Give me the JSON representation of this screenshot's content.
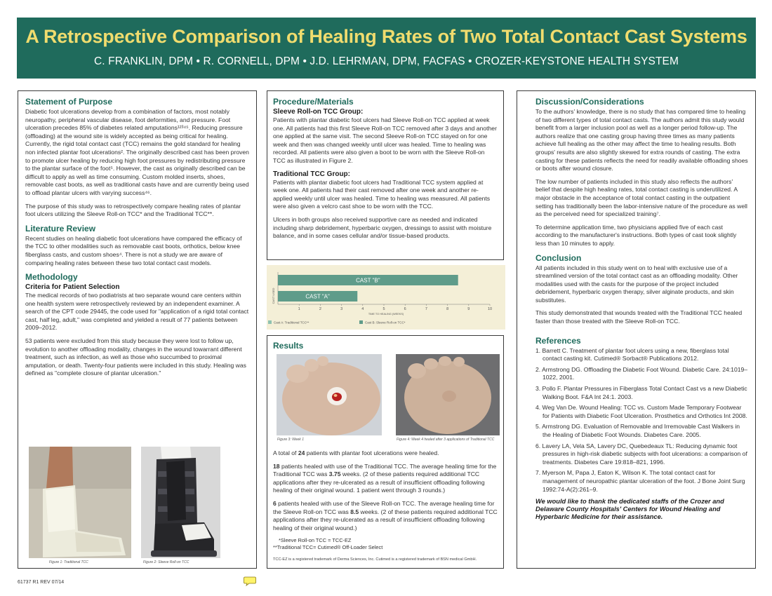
{
  "header": {
    "title": "A Retrospective Comparison of Healing Rates of Two Total Contact Cast Systems",
    "authors": "C. FRANKLIN, DPM  •  R. CORNELL, DPM  •  J.D. LEHRMAN, DPM, FACFAS  •  CROZER-KEYSTONE HEALTH SYSTEM"
  },
  "purpose": {
    "heading": "Statement of Purpose",
    "p1": "Diabetic foot ulcerations develop from a combination of factors, most notably neuropathy, peripheral vascular disease, foot deformities, and pressure. Foot ulceration precedes 85% of diabetes related amputations¹²³⁴⁵. Reducing pressure (offloading) at the wound site is widely accepted as being critical for healing. Currently, the rigid total contact cast (TCC) remains the gold standard for healing non infected plantar foot ulcerations². The originally described cast has been proven to promote ulcer healing by reducing high foot pressures by redistributing pressure to the plantar surface of the foot⁵. However, the cast as originally described can be difficult to apply as well as time consuming. Custom molded inserts, shoes, removable cast boots, as well as traditional casts have and are currently being used to offload plantar ulcers with varying success⁴⁶.",
    "p2": "The purpose of this study was to retrospectively compare healing rates of plantar foot ulcers utilizing the Sleeve Roll-on TCC* and the Traditional TCC**."
  },
  "literature": {
    "heading": "Literature Review",
    "p1": "Recent studies on healing diabetic foot ulcerations have compared the efficacy of the TCC to other modalities such as removable cast boots, orthotics, below knee fiberglass casts, and custom shoes⁴. There is not a study we are aware of comparing healing rates between these two total contact cast models."
  },
  "methodology": {
    "heading": "Methodology",
    "subheading": "Criteria for Patient Selection",
    "p1": "The medical records of two podiatrists at two separate wound care centers within one health system were retrospectively reviewed by an independent examiner. A search of the CPT code 29445, the code used for \"application of a rigid total contact cast, half leg, adult,\" was completed and yielded a result of 77 patients between 2009–2012.",
    "p2": "53 patients were excluded from this study because they were lost to follow up, evolution to another offloading modality, changes in the wound towarrant different treatment, such as infection, as well as those who succumbed to proximal amputation, or death. Twenty-four patients were included in this study. Healing was defined as \"complete closure of plantar ulceration.\"",
    "fig1_caption": "Figure 1: Traditional TCC",
    "fig2_caption": "Figure 2: Sleeve Roll-on TCC"
  },
  "procedure": {
    "heading": "Procedure/Materials",
    "sub1": "Sleeve Roll-on TCC Group:",
    "p1": "Patients with plantar diabetic foot ulcers had Sleeve Roll-on TCC applied at week one. All patients had this first Sleeve Roll-on TCC removed after 3 days and another one applied at the same visit. The second Sleeve Roll-on TCC stayed on for one week and then was changed weekly until ulcer was healed. Time to healing was recorded. All patients were also given a boot to be worn with the Sleeve Roll-on TCC as illustrated in Figure 2.",
    "sub2": "Traditional TCC Group:",
    "p2": "Patients with plantar diabetic foot ulcers had Traditional TCC system applied at week one. All patients had their cast removed after one week and another re-applied weekly until ulcer was healed. Time to healing was measured. All patients were also given a velcro cast shoe to be worn with the TCC.",
    "p3": "Ulcers in both groups also received supportive care as needed and indicated including sharp debridement, hyperbaric oxygen, dressings to assist with moisture balance, and in some cases cellular and/or tissue-based products."
  },
  "chart_data": {
    "type": "bar",
    "orientation": "horizontal",
    "categories": [
      "CAST \"A\"",
      "CAST \"B\""
    ],
    "values": [
      3.75,
      8.5
    ],
    "xlabel": "TIME TO HEALING (WEEKS)",
    "ylabel": "CAST USED",
    "xlim": [
      0,
      10
    ],
    "xticks": [
      "1",
      "2",
      "3",
      "4",
      "5",
      "6",
      "7",
      "8",
      "9",
      "10"
    ],
    "legend": [
      "Cast A: Traditional TCC**",
      "Cast B: Sleeve Roll-on TCC*"
    ],
    "legend_placement": "bottom",
    "colors": {
      "bar": "#5f9c8a",
      "legend_a": "#8fc2b1",
      "legend_b": "#5f9c8a",
      "background": "#f4efd7"
    }
  },
  "results": {
    "heading": "Results",
    "fig3_caption": "Figure 3: Week 1",
    "fig4_caption": "Figure 4: Week 4 healed after 3 applications of Traditional TCC",
    "p1_pre": "A total of ",
    "p1_num": "24",
    "p1_post": " patients with plantar foot ulcerations were healed.",
    "p2_num": "18",
    "p2_a": " patients healed with use of the Traditional TCC. The average healing time for the Traditional TCC was ",
    "p2_val": "3.75",
    "p2_b": " weeks. (2 of these patients required additional TCC applications after they re-ulcerated as a result of insufficient offloading following healing of their original wound. 1 patient went through 3 rounds.)",
    "p3_num": "6",
    "p3_a": " patients healed with use of the Sleeve Roll-on TCC. The average healing time for the Sleeve Roll-on TCC was ",
    "p3_val": "8.5",
    "p3_b": " weeks. (2 of these patients required additional TCC applications after they re-ulcerated as a result of insufficient offloading following healing of their original wound.)",
    "note1": "*Sleeve Roll-on TCC = TCC-EZ",
    "note2": "**Traditional TCC= Cutimed® Off-Loader Select",
    "trademark": "TCC-EZ is a registered trademark of Derma Sciences, Inc. Cutimed is a registered trademark of BSN medical GmbH."
  },
  "discussion": {
    "heading": "Discussion/Considerations",
    "p1": "To the authors' knowledge, there is no study that has compared time to healing of two different types of total contact casts. The authors admit this study would benefit from a larger inclusion pool as well as a longer period follow-up. The authors realize that one casting group having three times as many patients achieve full healing as the other may affect the time to healing results. Both groups' results are also slightly skewed for extra rounds of casting. The extra casting for these patients reflects the need for readily available offloading shoes or boots after wound closure.",
    "p2": "The low number of patients included in this study also reflects the authors' belief that despite high healing rates, total contact casting is underutilized. A major obstacle in the acceptance of total contact casting in the outpatient setting has traditionally been the labor-intensive nature of the procedure as well as the perceived need for specialized training⁷.",
    "p3": "To determine application time, two physicians applied five of each cast according to the manufacturer's instructions. Both types of cast took slightly less than 10 minutes to apply."
  },
  "conclusion": {
    "heading": "Conclusion",
    "p1": "All patients included in this study went on to heal with exclusive use of a streamlined version of the total contact cast as an offloading modality. Other modalities used with the casts for the purpose of the project included debridement, hyperbaric oxygen therapy, silver alginate products, and skin substitutes.",
    "p2": "This study demonstrated that wounds treated with the Traditional TCC healed faster than those treated with the Sleeve Roll-on TCC."
  },
  "references": {
    "heading": "References",
    "items": [
      "1. Barrett C. Treatment of plantar foot ulcers using a new, fiberglass total contact casting kit. Cutimed® Sorbact® Publications 2012.",
      "2. Armstrong DG. Offloading the Diabetic Foot Wound. Diabetic Care. 24:1019–1022, 2001.",
      "3. Pollo F. Plantar Pressures in Fiberglass Total Contact Cast vs a new Diabetic Walking Boot. F&A Int 24:1. 2003.",
      "4. Weg Van De. Wound Healing: TCC vs. Custom Made Temporary Footwear for Patients with Diabetic Foot Ulceration. Prosthetics and Orthotics Int 2008.",
      "5. Armstrong DG. Evaluation of Removable and Irremovable Cast Walkers in the Healing of Diabetic Foot Wounds. Diabetes Care. 2005.",
      "6. Lavery LA, Vela SA, Lavery DC, Quebedeaux TL: Reducing dynamic foot pressures in high-risk diabetic subjects with foot ulcerations: a comparison of treatments. Diabetes Care 19:818–821, 1996.",
      "7. Myerson M, Papa J, Eaton K, Wilson K. The total contact cast for management of neuropathic plantar ulceration of the foot. J Bone Joint Surg 1992:74-A(2):261–9."
    ],
    "thanks": "We would like to thank the dedicated staffs of the Crozer and Delaware County Hospitals' Centers for Wound Healing and Hyperbaric Medicine for their assistance."
  },
  "footer": {
    "code": "61737 R1    REV 07/14"
  }
}
